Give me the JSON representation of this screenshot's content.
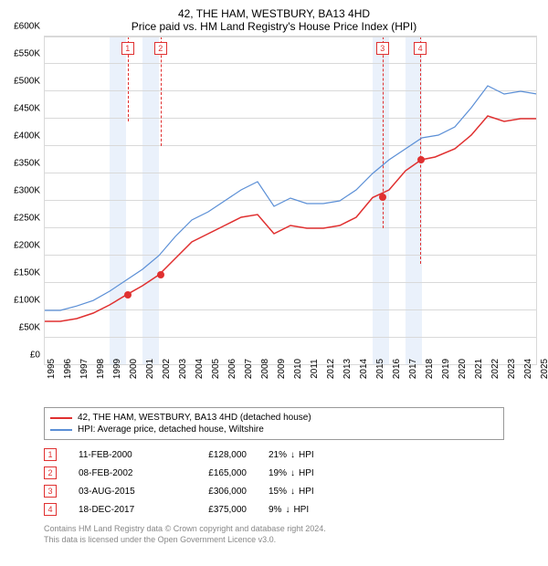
{
  "title": "42, THE HAM, WESTBURY, BA13 4HD",
  "subtitle": "Price paid vs. HM Land Registry's House Price Index (HPI)",
  "chart": {
    "type": "line",
    "ylim": [
      0,
      600
    ],
    "ytick_step": 50,
    "y_prefix": "£",
    "y_suffix": "K",
    "xlim": [
      1995,
      2025
    ],
    "xtick_step": 1,
    "grid_color": "#d9d9d9",
    "band_color": "#eaf1fb",
    "background_color": "#ffffff",
    "label_fontsize": 10,
    "title_fontsize": 12,
    "x_bands": [
      [
        1999,
        2000
      ],
      [
        2001,
        2002
      ],
      [
        2015,
        2016
      ],
      [
        2017,
        2018
      ]
    ],
    "marker_dash_color": "#e03030",
    "markers": [
      {
        "n": "1",
        "x": 2000.1,
        "y": 155
      },
      {
        "n": "2",
        "x": 2002.1,
        "y": 200
      },
      {
        "n": "3",
        "x": 2015.6,
        "y": 350
      },
      {
        "n": "4",
        "x": 2017.9,
        "y": 415
      }
    ],
    "series": [
      {
        "name": "property",
        "color": "#e03030",
        "width": 1.5,
        "points": [
          [
            1995,
            80
          ],
          [
            1996,
            80
          ],
          [
            1997,
            85
          ],
          [
            1998,
            95
          ],
          [
            1999,
            110
          ],
          [
            2000,
            128
          ],
          [
            2001,
            145
          ],
          [
            2002,
            165
          ],
          [
            2003,
            195
          ],
          [
            2004,
            225
          ],
          [
            2005,
            240
          ],
          [
            2006,
            255
          ],
          [
            2007,
            270
          ],
          [
            2008,
            275
          ],
          [
            2009,
            240
          ],
          [
            2010,
            255
          ],
          [
            2011,
            250
          ],
          [
            2012,
            250
          ],
          [
            2013,
            255
          ],
          [
            2014,
            270
          ],
          [
            2015,
            306
          ],
          [
            2016,
            320
          ],
          [
            2017,
            355
          ],
          [
            2017.96,
            375
          ],
          [
            2018.8,
            380
          ],
          [
            2020,
            395
          ],
          [
            2021,
            420
          ],
          [
            2022,
            455
          ],
          [
            2023,
            445
          ],
          [
            2024,
            450
          ],
          [
            2025,
            450
          ]
        ],
        "dots": [
          [
            2000.1,
            128
          ],
          [
            2002.1,
            165
          ],
          [
            2015.6,
            306
          ],
          [
            2017.96,
            375
          ]
        ],
        "dot_radius": 4
      },
      {
        "name": "hpi",
        "color": "#5b8fd6",
        "width": 1.2,
        "points": [
          [
            1995,
            100
          ],
          [
            1996,
            100
          ],
          [
            1997,
            108
          ],
          [
            1998,
            118
          ],
          [
            1999,
            135
          ],
          [
            2000,
            155
          ],
          [
            2001,
            175
          ],
          [
            2002,
            200
          ],
          [
            2003,
            235
          ],
          [
            2004,
            265
          ],
          [
            2005,
            280
          ],
          [
            2006,
            300
          ],
          [
            2007,
            320
          ],
          [
            2008,
            335
          ],
          [
            2009,
            290
          ],
          [
            2010,
            305
          ],
          [
            2011,
            295
          ],
          [
            2012,
            295
          ],
          [
            2013,
            300
          ],
          [
            2014,
            320
          ],
          [
            2015,
            350
          ],
          [
            2016,
            375
          ],
          [
            2017,
            395
          ],
          [
            2018,
            415
          ],
          [
            2019,
            420
          ],
          [
            2020,
            435
          ],
          [
            2021,
            470
          ],
          [
            2022,
            510
          ],
          [
            2023,
            495
          ],
          [
            2024,
            500
          ],
          [
            2025,
            495
          ]
        ]
      }
    ]
  },
  "legend": [
    {
      "color": "#e03030",
      "label": "42, THE HAM, WESTBURY, BA13 4HD (detached house)"
    },
    {
      "color": "#5b8fd6",
      "label": "HPI: Average price, detached house, Wiltshire"
    }
  ],
  "sales": [
    {
      "n": "1",
      "date": "11-FEB-2000",
      "price": "£128,000",
      "diff": "21%",
      "arrow": "↓",
      "suffix": "HPI",
      "color": "#e03030"
    },
    {
      "n": "2",
      "date": "08-FEB-2002",
      "price": "£165,000",
      "diff": "19%",
      "arrow": "↓",
      "suffix": "HPI",
      "color": "#e03030"
    },
    {
      "n": "3",
      "date": "03-AUG-2015",
      "price": "£306,000",
      "diff": "15%",
      "arrow": "↓",
      "suffix": "HPI",
      "color": "#e03030"
    },
    {
      "n": "4",
      "date": "18-DEC-2017",
      "price": "£375,000",
      "diff": "9%",
      "arrow": "↓",
      "suffix": "HPI",
      "color": "#e03030"
    }
  ],
  "footer": {
    "line1": "Contains HM Land Registry data © Crown copyright and database right 2024.",
    "line2": "This data is licensed under the Open Government Licence v3.0."
  }
}
